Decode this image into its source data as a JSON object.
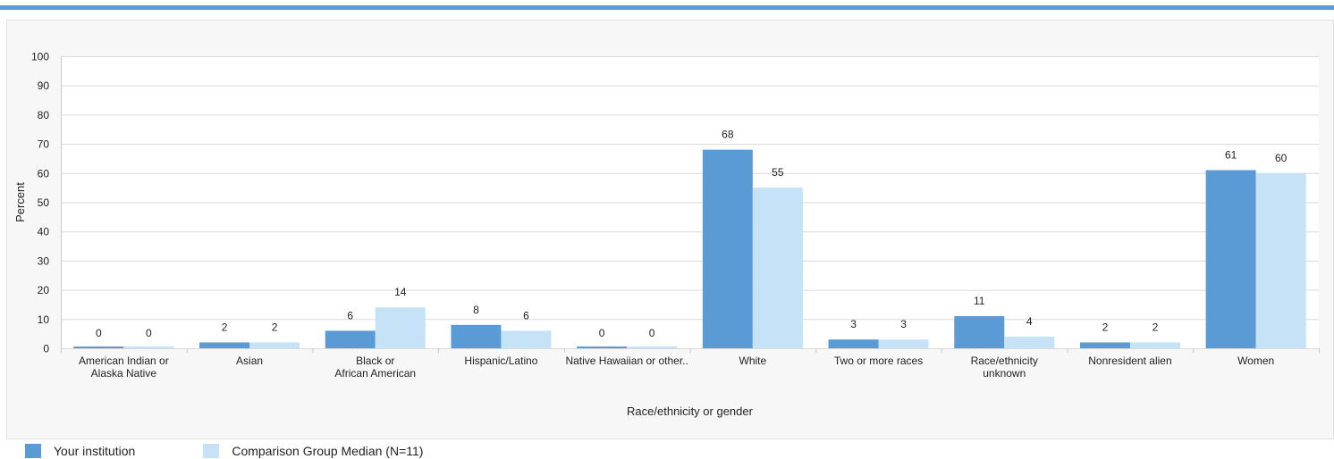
{
  "chart_data": {
    "type": "bar",
    "categories": [
      [
        "American Indian or",
        "Alaska Native"
      ],
      [
        "Asian"
      ],
      [
        "Black or",
        "African American"
      ],
      [
        "Hispanic/Latino"
      ],
      [
        "Native Hawaiian  or other.."
      ],
      [
        "White"
      ],
      [
        "Two or more races"
      ],
      [
        "Race/ethnicity",
        "unknown"
      ],
      [
        "Nonresident alien"
      ],
      [
        "Women"
      ]
    ],
    "series": [
      {
        "name": "Your institution",
        "color": "#5b9bd5",
        "values": [
          0,
          2,
          6,
          8,
          0,
          68,
          3,
          11,
          2,
          61
        ]
      },
      {
        "name": "Comparison Group Median (N=11)",
        "color": "#c5e2f7",
        "values": [
          0,
          2,
          14,
          6,
          0,
          55,
          3,
          4,
          2,
          60
        ]
      }
    ],
    "xlabel": "Race/ethnicity or gender",
    "ylabel": "Percent",
    "ylim": [
      0,
      100
    ],
    "yticks": [
      0,
      10,
      20,
      30,
      40,
      50,
      60,
      70,
      80,
      90,
      100
    ],
    "grid": true,
    "legend_position": "bottom-left"
  }
}
